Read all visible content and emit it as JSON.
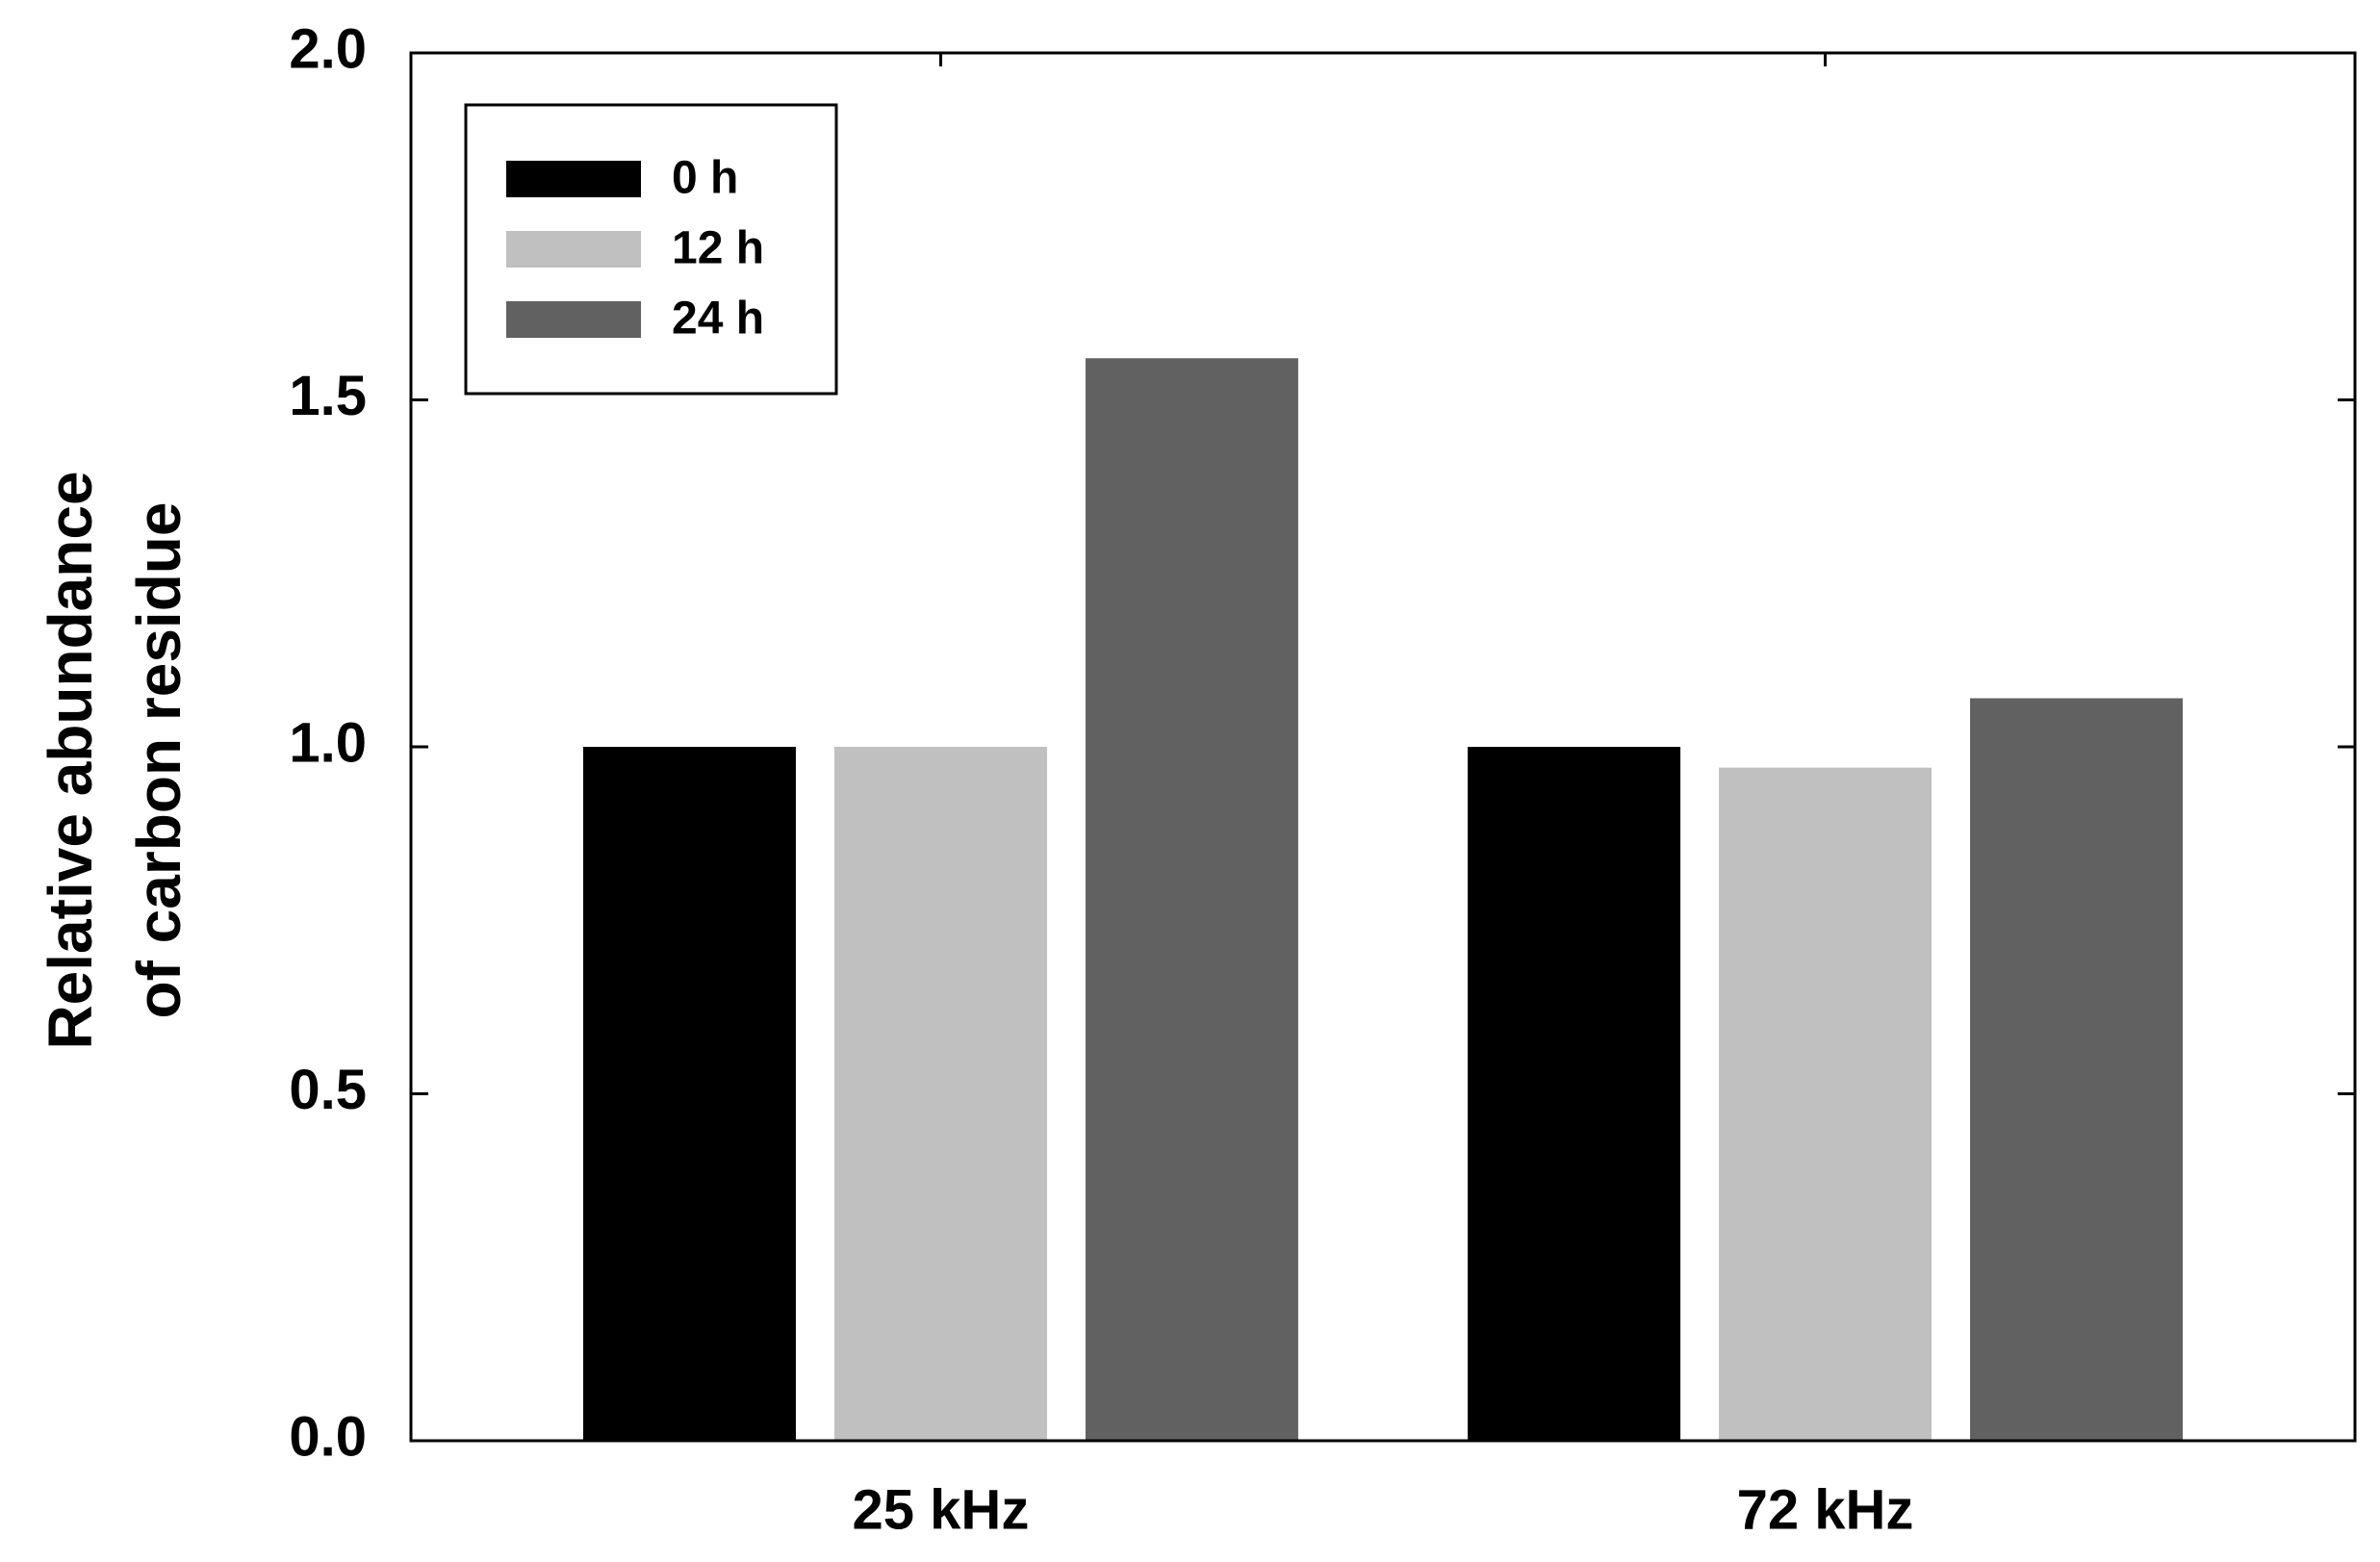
{
  "chart_data": {
    "type": "bar",
    "ylabel": [
      "Relative abundance",
      "of carbon residue"
    ],
    "categories": [
      "25 kHz",
      "72 kHz"
    ],
    "series": [
      {
        "name": "0 h",
        "color": "#000000",
        "values": [
          1.0,
          1.0
        ]
      },
      {
        "name": "12 h",
        "color": "#c0c0c0",
        "values": [
          1.0,
          0.97
        ]
      },
      {
        "name": "24 h",
        "color": "#616161",
        "values": [
          1.56,
          1.07
        ]
      }
    ],
    "ylim": [
      0,
      2
    ],
    "yticks": [
      {
        "value": 0,
        "label": "0.0"
      },
      {
        "value": 0.5,
        "label": "0.5"
      },
      {
        "value": 1,
        "label": "1.0"
      },
      {
        "value": 1.5,
        "label": "1.5"
      },
      {
        "value": 2,
        "label": "2.0"
      }
    ],
    "legend": "upper left",
    "grid": false
  }
}
